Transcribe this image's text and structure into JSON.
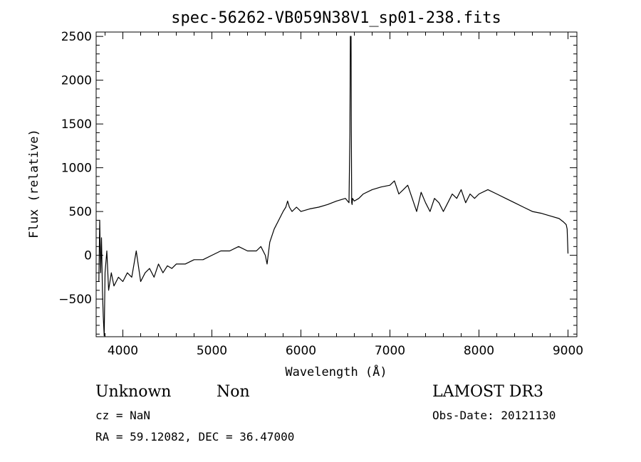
{
  "chart_data": {
    "type": "line",
    "title": "spec-56262-VB059N38V1_sp01-238.fits",
    "xlabel": "Wavelength (Å)",
    "ylabel": "Flux (relative)",
    "xlim": [
      3700,
      9100
    ],
    "ylim": [
      -930,
      2550
    ],
    "xticks": [
      4000,
      5000,
      6000,
      7000,
      8000,
      9000
    ],
    "yticks": [
      -500,
      0,
      500,
      1000,
      1500,
      2000,
      2500
    ],
    "ytick_labels": [
      "−500",
      "0",
      "500",
      "1000",
      "1500",
      "2000",
      "2500"
    ],
    "grid": false,
    "line_color": "#000000",
    "series": [
      {
        "x": [
          3730,
          3740,
          3750,
          3760,
          3770,
          3780,
          3790,
          3800,
          3820,
          3840,
          3870,
          3900,
          3950,
          4000,
          4050,
          4100,
          4150,
          4200,
          4250,
          4300,
          4350,
          4400,
          4450,
          4500,
          4550,
          4600,
          4700,
          4800,
          4900,
          5000,
          5100,
          5200,
          5300,
          5400,
          5500,
          5550,
          5600,
          5620,
          5650,
          5700,
          5750,
          5800,
          5830,
          5850,
          5870,
          5900,
          5950,
          6000,
          6100,
          6200,
          6300,
          6400,
          6500,
          6540,
          6550,
          6555,
          6560,
          6563,
          6566,
          6570,
          6575,
          6580,
          6600,
          6650,
          6700,
          6800,
          6900,
          7000,
          7050,
          7100,
          7150,
          7200,
          7250,
          7300,
          7350,
          7400,
          7450,
          7500,
          7550,
          7600,
          7650,
          7700,
          7750,
          7800,
          7850,
          7900,
          7950,
          8000,
          8100,
          8200,
          8300,
          8400,
          8500,
          8600,
          8700,
          8800,
          8900,
          8950,
          8980,
          8990,
          9000
        ],
        "y": [
          -300,
          400,
          -200,
          200,
          -400,
          -700,
          -920,
          -200,
          50,
          -400,
          -200,
          -350,
          -250,
          -300,
          -200,
          -250,
          50,
          -300,
          -200,
          -150,
          -250,
          -100,
          -200,
          -120,
          -150,
          -100,
          -100,
          -50,
          -50,
          0,
          50,
          50,
          100,
          50,
          50,
          100,
          0,
          -100,
          150,
          300,
          400,
          500,
          550,
          620,
          550,
          500,
          550,
          500,
          530,
          550,
          580,
          620,
          650,
          600,
          1400,
          2500,
          2450,
          2500,
          1400,
          600,
          580,
          650,
          620,
          650,
          700,
          750,
          780,
          800,
          850,
          700,
          750,
          800,
          650,
          500,
          720,
          600,
          500,
          650,
          600,
          500,
          600,
          700,
          650,
          750,
          600,
          700,
          650,
          700,
          750,
          700,
          650,
          600,
          550,
          500,
          480,
          450,
          420,
          380,
          350,
          300,
          20
        ]
      }
    ]
  },
  "annotations": {
    "object_class": "Unknown",
    "object_subclass": "Non",
    "survey": "LAMOST DR3",
    "redshift": "cz = NaN",
    "obs_date": "Obs-Date: 20121130",
    "coords": "RA =  59.12082, DEC =  36.47000"
  }
}
